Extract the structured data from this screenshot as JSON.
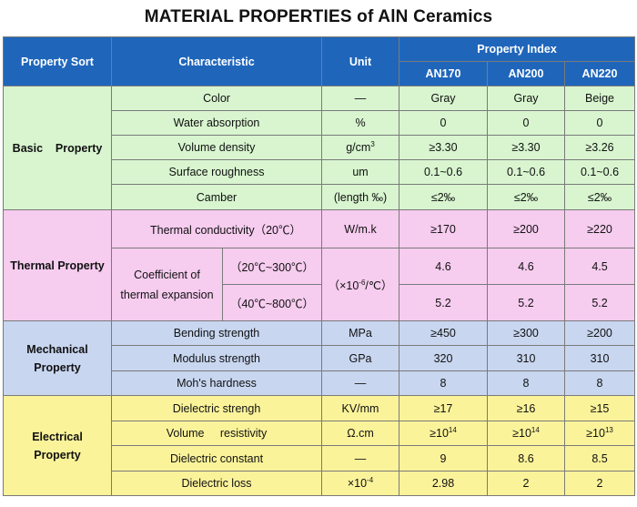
{
  "title": "MATERIAL PROPERTIES of AlN Ceramics",
  "header": {
    "property_sort": "Property Sort",
    "characteristic": "Characteristic",
    "unit": "Unit",
    "property_index": "Property Index",
    "grades": [
      "AN170",
      "AN200",
      "AN220"
    ]
  },
  "groups": {
    "basic": {
      "name": "Basic    Property",
      "rows": [
        {
          "characteristic": "Color",
          "unit": "—",
          "values": [
            "Gray",
            "Gray",
            "Beige"
          ]
        },
        {
          "characteristic": "Water absorption",
          "unit": "%",
          "values": [
            "0",
            "0",
            "0"
          ]
        },
        {
          "characteristic": "Volume density",
          "unit": "g/cm",
          "unit_sup": "3",
          "values": [
            "≥3.30",
            "≥3.30",
            "≥3.26"
          ]
        },
        {
          "characteristic": "Surface roughness",
          "unit": "um",
          "values": [
            "0.1~0.6",
            "0.1~0.6",
            "0.1~0.6"
          ]
        },
        {
          "characteristic": "Camber",
          "unit": "(length ‰)",
          "values": [
            "≤2‰",
            "≤2‰",
            "≤2‰"
          ]
        }
      ]
    },
    "thermal": {
      "name": "Thermal Property",
      "conductivity": {
        "characteristic": "Thermal conductivity（20℃）",
        "unit": "W/m.k",
        "values": [
          "≥170",
          "≥200",
          "≥220"
        ]
      },
      "expansion": {
        "characteristic_line1": "Coefficient of",
        "characteristic_line2": "thermal expansion",
        "unit_prefix": "（×10",
        "unit_sup": "-6",
        "unit_suffix": "/℃）",
        "ranges": [
          {
            "range": "（20℃~300℃）",
            "values": [
              "4.6",
              "4.6",
              "4.5"
            ]
          },
          {
            "range": "（40℃~800℃）",
            "values": [
              "5.2",
              "5.2",
              "5.2"
            ]
          }
        ]
      }
    },
    "mechanical": {
      "name_line1": "Mechanical",
      "name_line2": "Property",
      "rows": [
        {
          "characteristic": "Bending strength",
          "unit": "MPa",
          "values": [
            "≥450",
            "≥300",
            "≥200"
          ]
        },
        {
          "characteristic": "Modulus strength",
          "unit": "GPa",
          "values": [
            "320",
            "310",
            "310"
          ]
        },
        {
          "characteristic": "Moh's hardness",
          "unit": "—",
          "values": [
            "8",
            "8",
            "8"
          ]
        }
      ]
    },
    "electrical": {
      "name_line1": "Electrical",
      "name_line2": "Property",
      "rows": [
        {
          "characteristic": "Dielectric strengh",
          "unit": "KV/mm",
          "values": [
            "≥17",
            "≥16",
            "≥15"
          ]
        },
        {
          "characteristic": "Volume     resistivity",
          "unit": "Ω.cm",
          "values": [
            "≥10",
            "≥10",
            "≥10"
          ],
          "sups": [
            "14",
            "14",
            "13"
          ]
        },
        {
          "characteristic": "Dielectric constant",
          "unit": "—",
          "values": [
            "9",
            "8.6",
            "8.5"
          ]
        },
        {
          "characteristic": "Dielectric loss",
          "unit": "×10",
          "unit_sup": "-4",
          "values": [
            "2.98",
            "2",
            "2"
          ]
        }
      ]
    }
  }
}
